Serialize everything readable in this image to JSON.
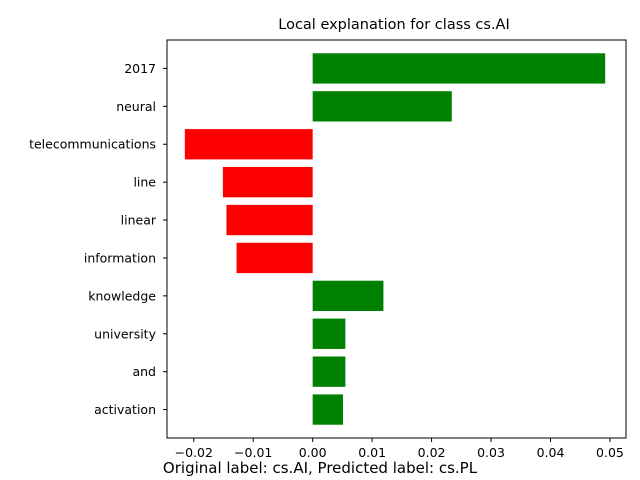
{
  "caption": "Original label: cs.AI, Predicted label: cs.PL",
  "chart_data": {
    "type": "bar",
    "orientation": "horizontal",
    "title": "Local explanation for class cs.AI",
    "xlabel": "",
    "ylabel": "",
    "categories": [
      "2017",
      "neural",
      "telecommunications",
      "line",
      "linear",
      "information",
      "knowledge",
      "university",
      "and",
      "activation"
    ],
    "values": [
      0.0492,
      0.0234,
      -0.0215,
      -0.0151,
      -0.0145,
      -0.0128,
      0.0119,
      0.0055,
      0.0055,
      0.0051
    ],
    "xlim": [
      -0.0245,
      0.0527
    ],
    "xticks": [
      -0.02,
      -0.01,
      0.0,
      0.01,
      0.02,
      0.03,
      0.04,
      0.05
    ],
    "xtick_labels": [
      "−0.02",
      "−0.01",
      "0.00",
      "0.01",
      "0.02",
      "0.03",
      "0.04",
      "0.05"
    ],
    "colors": {
      "positive": "#008000",
      "negative": "#ff0000"
    },
    "grid": false,
    "legend": "none"
  }
}
